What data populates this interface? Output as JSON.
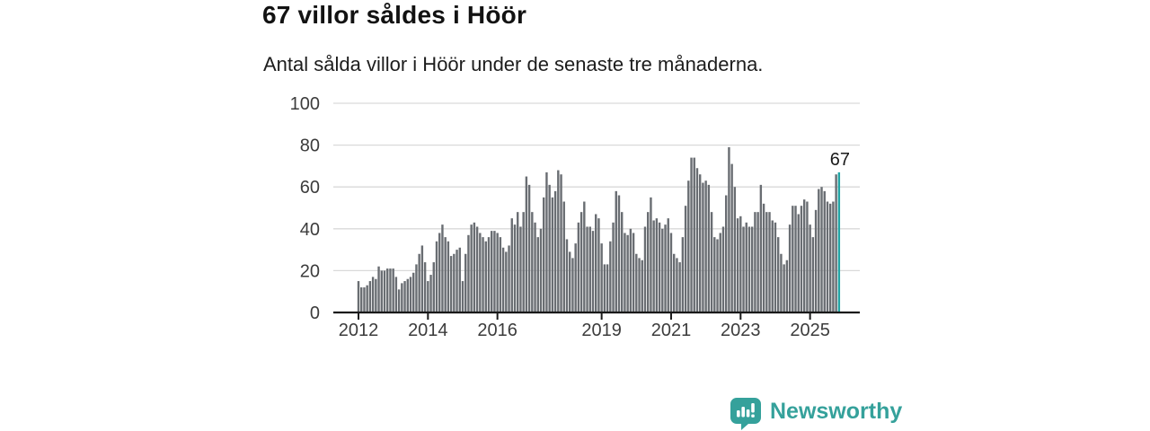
{
  "header": {
    "title": "67 villor såldes i Höör",
    "subtitle": "Antal sålda villor i Höör under de senaste tre månaderna."
  },
  "chart_data": {
    "type": "bar",
    "title": "67 villor såldes i Höör",
    "subtitle": "Antal sålda villor i Höör under de senaste tre månaderna.",
    "frequency": "monthly",
    "x_start": "2012-01",
    "x_end": "2025-11",
    "values": [
      15,
      12,
      12,
      13,
      15,
      17,
      16,
      22,
      20,
      20,
      21,
      21,
      21,
      17,
      11,
      14,
      15,
      16,
      17,
      19,
      23,
      28,
      32,
      24,
      15,
      18,
      24,
      34,
      38,
      42,
      36,
      34,
      27,
      28,
      30,
      31,
      15,
      28,
      37,
      42,
      43,
      41,
      38,
      36,
      34,
      36,
      39,
      39,
      38,
      36,
      31,
      29,
      32,
      45,
      42,
      48,
      41,
      48,
      65,
      61,
      48,
      43,
      36,
      40,
      55,
      67,
      61,
      55,
      58,
      68,
      66,
      53,
      35,
      29,
      26,
      33,
      43,
      48,
      53,
      41,
      41,
      39,
      47,
      45,
      33,
      23,
      23,
      34,
      43,
      58,
      56,
      48,
      38,
      37,
      40,
      38,
      28,
      26,
      25,
      41,
      48,
      55,
      44,
      45,
      43,
      40,
      42,
      45,
      38,
      28,
      26,
      24,
      36,
      51,
      63,
      74,
      74,
      69,
      66,
      62,
      63,
      61,
      48,
      36,
      35,
      38,
      41,
      56,
      79,
      71,
      60,
      45,
      46,
      41,
      43,
      41,
      41,
      48,
      48,
      61,
      52,
      48,
      48,
      44,
      43,
      36,
      28,
      23,
      25,
      42,
      51,
      51,
      47,
      51,
      54,
      53,
      42,
      36,
      49,
      59,
      60,
      58,
      53,
      52,
      53,
      66,
      67
    ],
    "highlight_index": 166,
    "highlight_value_label": "67",
    "ylim": [
      0,
      100
    ],
    "y_ticks": [
      0,
      20,
      40,
      60,
      80,
      100
    ],
    "x_tick_years": [
      2012,
      2014,
      2016,
      2019,
      2021,
      2023,
      2025
    ],
    "grid": "horizontal",
    "legend": "none",
    "bar_color": "#696d72",
    "highlight_color": "#23a5a5",
    "axis_color": "#1a1a1a",
    "grid_color": "#d9d9d9",
    "tick_label_color": "#3c3c3c",
    "value_label_color": "#1a1a1a"
  },
  "footer": {
    "brand": "Newsworthy",
    "brand_color": "#35a19b",
    "brand_icon": "speech-bubble-bar-chart-icon"
  }
}
